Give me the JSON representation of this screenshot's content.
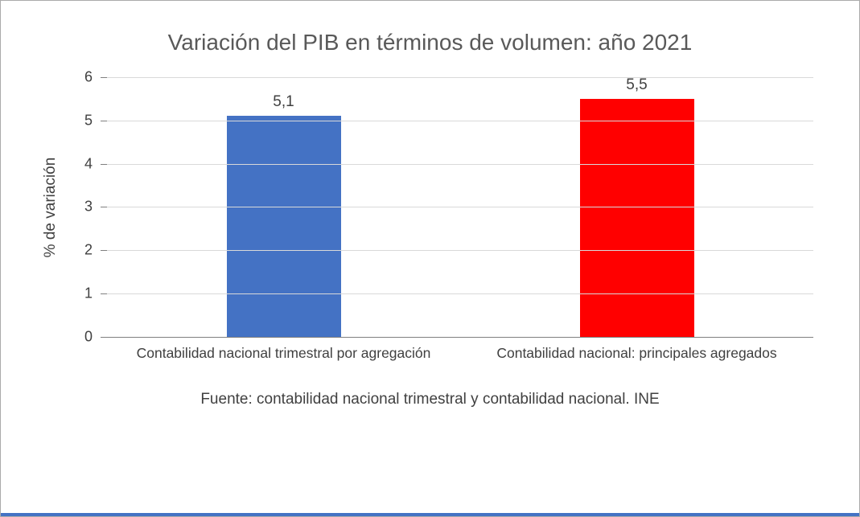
{
  "chart_data": {
    "type": "bar",
    "title": "Variación del PIB en términos de volumen: año 2021",
    "categories": [
      "Contabilidad nacional trimestral por agregación",
      "Contabilidad nacional: principales agregados"
    ],
    "values": [
      5.1,
      5.5
    ],
    "value_labels": [
      "5,1",
      "5,5"
    ],
    "bar_colors": [
      "#4472c4",
      "#ff0000"
    ],
    "xlabel": "",
    "ylabel": "% de variación",
    "ylim": [
      0,
      6
    ],
    "yticks": [
      0,
      1,
      2,
      3,
      4,
      5,
      6
    ],
    "grid": true,
    "legend_position": "none",
    "source_note": "Fuente: contabilidad nacional trimestral y contabilidad nacional. INE"
  },
  "colors": {
    "gridline": "#d9d9d9",
    "axis_line": "#808080",
    "text": "#404040",
    "title_text": "#595959",
    "frame_border": "#ababab",
    "bottom_strip": "#4472c4"
  }
}
